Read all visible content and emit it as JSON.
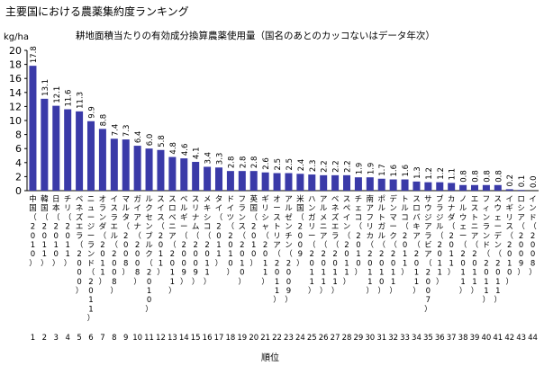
{
  "title": "主要国における農薬集約度ランキング",
  "subtitle": "耕地面積当たりの有効成分換算農薬使用量（国名のあとのカッコないはデータ年次）",
  "chart_data": {
    "type": "bar",
    "ylabel": "kg/ha",
    "xlabel": "順位",
    "ylim": [
      0,
      20
    ],
    "yticks": [
      0,
      2,
      4,
      6,
      8,
      10,
      12,
      14,
      16,
      18,
      20
    ],
    "bar_color": "#3a3aa8",
    "categories": [
      "中国（2010）",
      "韓国（2011）",
      "日本（2010）",
      "チリ（2011）",
      "ベネズエラ（2000）",
      "ニュージーランド（2011）",
      "オランダ（2011）",
      "イスラエル（2008）",
      "マルタ（2008）",
      "ガイアナ（2008）",
      "ルクセンブルク（2010）",
      "スイス（2011）",
      "スロベニア（2011）",
      "ベルギー（2009）",
      "スリナム（2009）",
      "メキシコ（2011）",
      "タイ（2011）",
      "ドイツ（2010）",
      "フランス（2010）",
      "英国（2010）",
      "ギリシャ（2011）",
      "オーストリア（2011）",
      "アルゼンチン（2009）",
      "米国（2009）",
      "ハンガリー（2011）",
      "アルメニア（2011）",
      "ベネズエラ（2011）",
      "スペイン（2011）",
      "チェコ（2010）",
      "南アフリカ（2011）",
      "ポルトガル（2010）",
      "デンマーク（2011）",
      "トルコ（2011）",
      "スロバキア（2011）",
      "サウジアラビア（2007）",
      "ブラジル（2011）",
      "カナダ（2011）",
      "ノルウェー（2011）",
      "エストニア（2011）",
      "フィンランド（2011）",
      "スウェーデン（2011）",
      "イギリス（2010）",
      "ロシア（2009）",
      "インド（2008）"
    ],
    "ranks": [
      1,
      2,
      3,
      4,
      5,
      6,
      7,
      8,
      9,
      10,
      11,
      12,
      13,
      14,
      15,
      16,
      17,
      18,
      19,
      20,
      21,
      22,
      23,
      24,
      25,
      26,
      27,
      28,
      29,
      30,
      31,
      32,
      33,
      34,
      35,
      36,
      37,
      38,
      39,
      40,
      41,
      42,
      43,
      44
    ],
    "values": [
      17.8,
      13.1,
      12.1,
      11.6,
      11.3,
      9.9,
      8.8,
      7.4,
      7.3,
      6.4,
      6.0,
      5.8,
      4.8,
      4.6,
      4.1,
      3.4,
      3.3,
      2.8,
      2.8,
      2.8,
      2.6,
      2.5,
      2.5,
      2.4,
      2.3,
      2.2,
      2.2,
      2.2,
      1.9,
      1.9,
      1.7,
      1.6,
      1.6,
      1.3,
      1.2,
      1.2,
      1.1,
      0.8,
      0.8,
      0.8,
      0.8,
      0.2,
      0.1,
      0.0
    ],
    "value_labels": [
      "17.8",
      "13.1",
      "12.1",
      "11.6",
      "11.3",
      "9.9",
      "8.8",
      "7.4",
      "7.3",
      "6.4",
      "6.0",
      "5.8",
      "4.8",
      "4.6",
      "4.1",
      "3.4",
      "3.3",
      "2.8",
      "2.8",
      "2.8",
      "2.6",
      "2.5",
      "2.5",
      "2.4",
      "2.3",
      "2.2",
      "2.2",
      "2.2",
      "1.9",
      "1.9",
      "1.7",
      "1.6",
      "1.6",
      "1.3",
      "1.2",
      "1.2",
      "1.1",
      "0.8",
      "0.8",
      "0.8",
      "0.8",
      "0.2",
      "0.1",
      "0.0"
    ]
  }
}
